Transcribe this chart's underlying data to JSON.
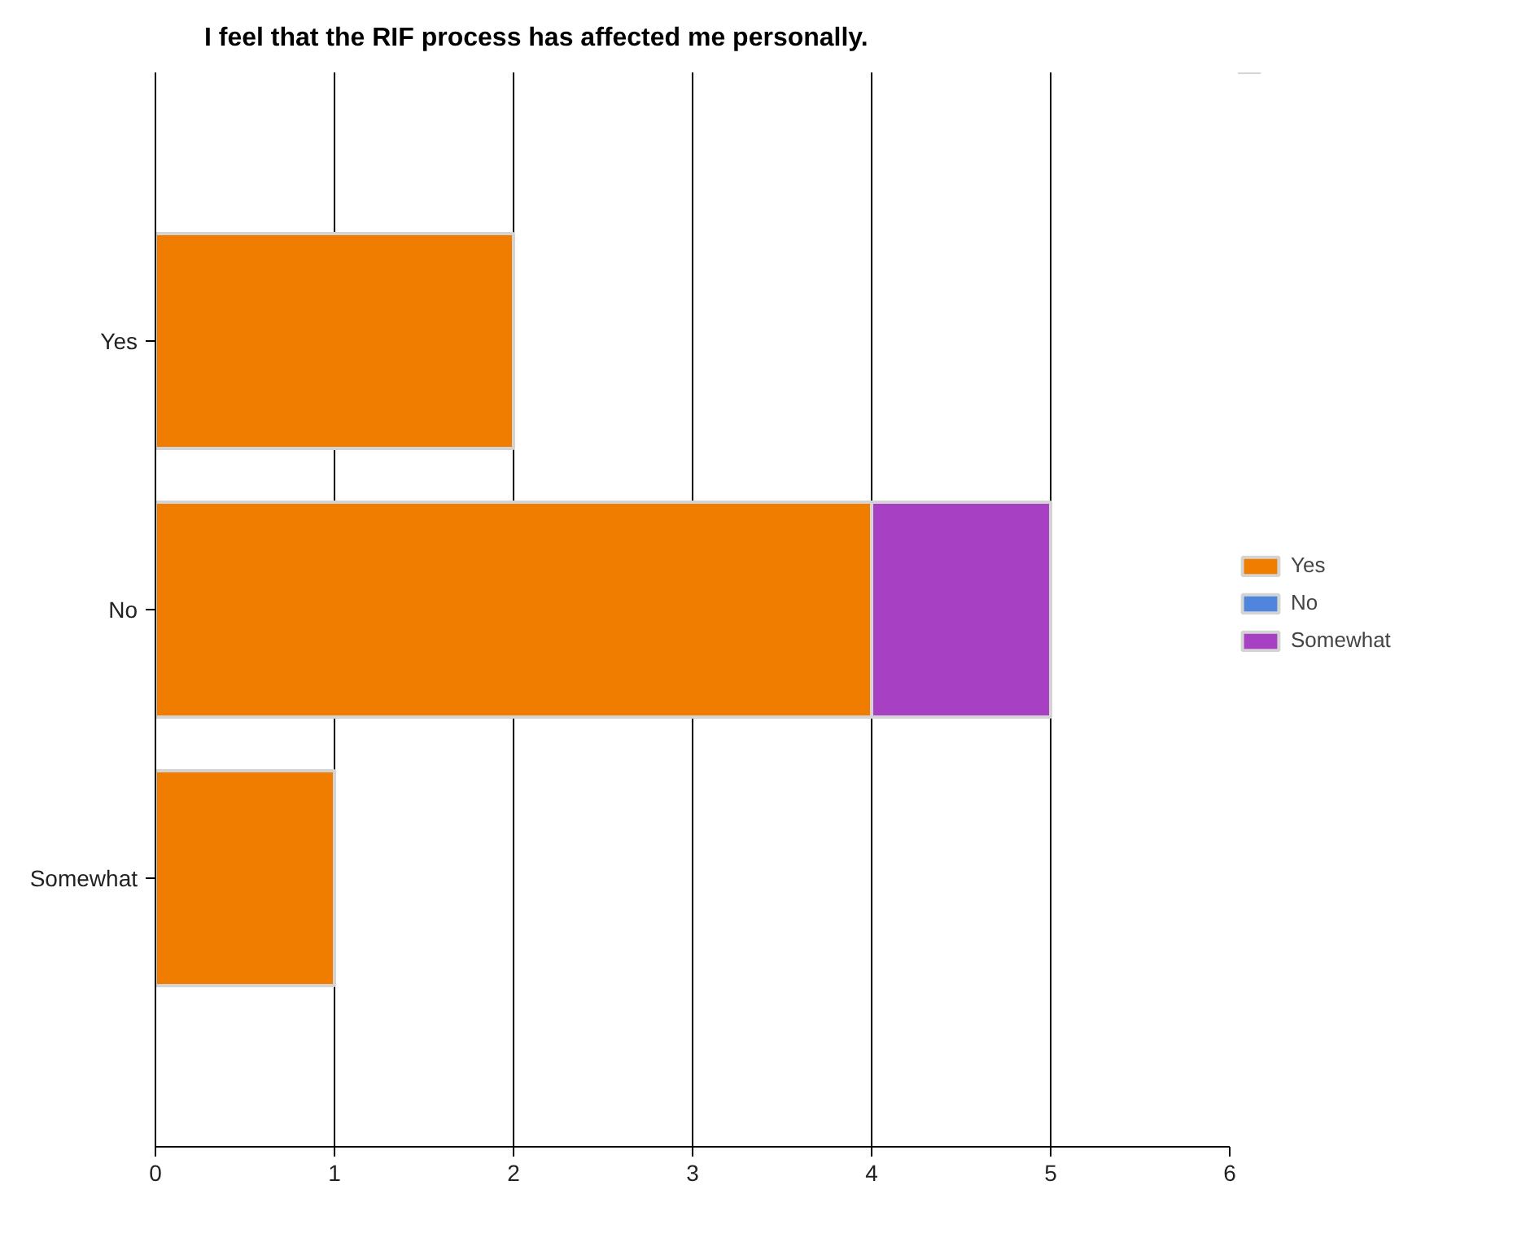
{
  "chart_data": {
    "type": "bar",
    "orientation": "horizontal",
    "stacked": true,
    "title": "I feel that the RIF process has affected me personally.",
    "categories": [
      "Yes",
      "No",
      "Somewhat"
    ],
    "series": [
      {
        "name": "Yes",
        "color": "#f07c00",
        "values": [
          2,
          4,
          1
        ]
      },
      {
        "name": "No",
        "color": "#4f85dc",
        "values": [
          0,
          0,
          0
        ]
      },
      {
        "name": "Somewhat",
        "color": "#a840c4",
        "values": [
          0,
          1,
          0
        ]
      }
    ],
    "xlim": [
      0,
      6
    ],
    "xticks": [
      0,
      1,
      2,
      3,
      4,
      5,
      6
    ],
    "grid": "x",
    "legend": "right"
  }
}
